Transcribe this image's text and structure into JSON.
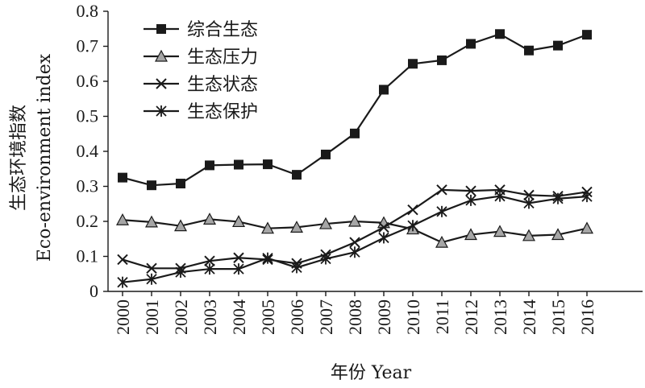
{
  "chart_data": {
    "type": "line",
    "ylabel_cn": "生态环境指数",
    "ylabel_en": "Eco-environment index",
    "xlabel": "年份 Year",
    "ylim": [
      0,
      0.8
    ],
    "yticks": [
      "0",
      "0.1",
      "0.2",
      "0.3",
      "0.4",
      "0.5",
      "0.6",
      "0.7",
      "0.8"
    ],
    "categories": [
      "2000",
      "2001",
      "2002",
      "2003",
      "2004",
      "2005",
      "2006",
      "2007",
      "2008",
      "2009",
      "2010",
      "2011",
      "2012",
      "2013",
      "2014",
      "2015",
      "2016"
    ],
    "legend_position": "top-left",
    "series": [
      {
        "name": "综合生态",
        "marker": "filled-square",
        "values": [
          0.325,
          0.303,
          0.308,
          0.36,
          0.362,
          0.363,
          0.333,
          0.391,
          0.451,
          0.576,
          0.65,
          0.66,
          0.707,
          0.735,
          0.688,
          0.702,
          0.733
        ]
      },
      {
        "name": "生态压力",
        "marker": "gray-triangle",
        "values": [
          0.204,
          0.198,
          0.187,
          0.206,
          0.199,
          0.18,
          0.183,
          0.193,
          0.2,
          0.196,
          0.178,
          0.14,
          0.162,
          0.171,
          0.159,
          0.162,
          0.18
        ]
      },
      {
        "name": "生态状态",
        "marker": "x-cross",
        "values": [
          0.091,
          0.066,
          0.066,
          0.087,
          0.096,
          0.091,
          0.08,
          0.105,
          0.14,
          0.183,
          0.233,
          0.29,
          0.287,
          0.29,
          0.275,
          0.272,
          0.284
        ]
      },
      {
        "name": "生态保护",
        "marker": "asterisk",
        "values": [
          0.026,
          0.035,
          0.055,
          0.064,
          0.064,
          0.095,
          0.068,
          0.093,
          0.112,
          0.153,
          0.188,
          0.228,
          0.26,
          0.272,
          0.252,
          0.265,
          0.271
        ]
      }
    ]
  }
}
